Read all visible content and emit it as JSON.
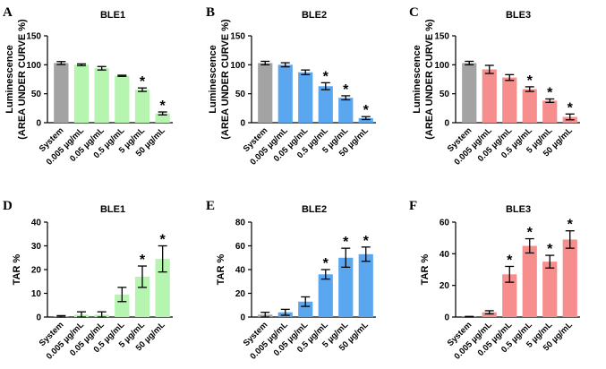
{
  "colors": {
    "system": "#a3a3a3",
    "ble1": "#b6f5b0",
    "ble2": "#5aa7f0",
    "ble3": "#f78e8e"
  },
  "chart_data": [
    {
      "panel": "A",
      "type": "bar",
      "title": "BLE1",
      "ylabel": [
        "Luminescence",
        "(AREA UNDER CURVE %)"
      ],
      "ylim": [
        0,
        150
      ],
      "yticks": [
        0,
        50,
        100,
        150
      ],
      "categories": [
        "System",
        "0.005 µg/mL",
        "0.05 µg/mL",
        "0.5 µg/mL",
        "5 µg/mL",
        "50 µg/mL"
      ],
      "values": [
        103,
        100,
        94,
        81,
        57,
        16
      ],
      "errors": [
        2.5,
        1.5,
        3,
        1,
        3,
        2.5
      ],
      "significant": [
        false,
        false,
        false,
        false,
        true,
        true
      ],
      "color": "ble1"
    },
    {
      "panel": "B",
      "type": "bar",
      "title": "BLE2",
      "ylabel": [
        "Luminescence",
        "(AREA UNDER CURVE %)"
      ],
      "ylim": [
        0,
        150
      ],
      "yticks": [
        0,
        50,
        100,
        150
      ],
      "categories": [
        "System",
        "0.005 µg/mL",
        "0.05 µg/mL",
        "0.5 µg/mL",
        "5 µg/mL",
        "50 µg/mL"
      ],
      "values": [
        103,
        100,
        87,
        63,
        43,
        8
      ],
      "errors": [
        3,
        3.5,
        4,
        6,
        3.5,
        2.5
      ],
      "significant": [
        false,
        false,
        false,
        true,
        true,
        true
      ],
      "color": "ble2"
    },
    {
      "panel": "C",
      "type": "bar",
      "title": "BLE3",
      "ylabel": [
        "Luminescence",
        "(AREA UNDER CURVE %)"
      ],
      "ylim": [
        0,
        150
      ],
      "yticks": [
        0,
        50,
        100,
        150
      ],
      "categories": [
        "System",
        "0.005 µg/mL",
        "0.05 µg/mL",
        "0.5 µg/mL",
        "5 µg/mL",
        "50 µg/mL"
      ],
      "values": [
        103,
        92,
        78,
        58,
        38,
        10
      ],
      "errors": [
        3,
        7,
        5,
        4,
        3,
        5
      ],
      "significant": [
        false,
        false,
        false,
        true,
        true,
        true
      ],
      "color": "ble3"
    },
    {
      "panel": "D",
      "type": "bar",
      "title": "BLE1",
      "ylabel": [
        "TAR %"
      ],
      "ylim": [
        0,
        40
      ],
      "yticks": [
        0,
        10,
        20,
        30,
        40
      ],
      "categories": [
        "System",
        "0.005 µg/mL",
        "0.05 µg/mL",
        "0.5 µg/mL",
        "5 µg/mL",
        "50 µg/mL"
      ],
      "values": [
        0.3,
        1,
        1,
        9.5,
        17,
        24.5
      ],
      "errors": [
        0.3,
        1.2,
        1.2,
        3,
        4.5,
        5.5
      ],
      "significant": [
        false,
        false,
        false,
        false,
        true,
        true
      ],
      "color": "ble1"
    },
    {
      "panel": "E",
      "type": "bar",
      "title": "BLE2",
      "ylabel": [
        "TAR %"
      ],
      "ylim": [
        0,
        80
      ],
      "yticks": [
        0,
        20,
        40,
        60,
        80
      ],
      "categories": [
        "System",
        "0.005 µg/mL",
        "0.05 µg/mL",
        "0.5 µg/mL",
        "5 µg/mL",
        "50 µg/mL"
      ],
      "values": [
        2,
        4,
        13,
        36,
        50,
        53
      ],
      "errors": [
        2,
        2.5,
        4,
        4,
        8,
        6
      ],
      "significant": [
        false,
        false,
        false,
        true,
        true,
        true
      ],
      "color": "ble2"
    },
    {
      "panel": "F",
      "type": "bar",
      "title": "BLE3",
      "ylabel": [
        "TAR %"
      ],
      "ylim": [
        0,
        60
      ],
      "yticks": [
        0,
        20,
        40,
        60
      ],
      "categories": [
        "System",
        "0.005 µg/mL",
        "0.05 µg/mL",
        "0.5 µg/mL",
        "5 µg/mL",
        "50 µg/mL"
      ],
      "values": [
        0.2,
        3,
        27,
        45,
        35,
        49
      ],
      "errors": [
        0.2,
        1,
        5,
        4.5,
        4,
        5.5
      ],
      "significant": [
        false,
        false,
        true,
        true,
        true,
        true
      ],
      "color": "ble3"
    }
  ]
}
